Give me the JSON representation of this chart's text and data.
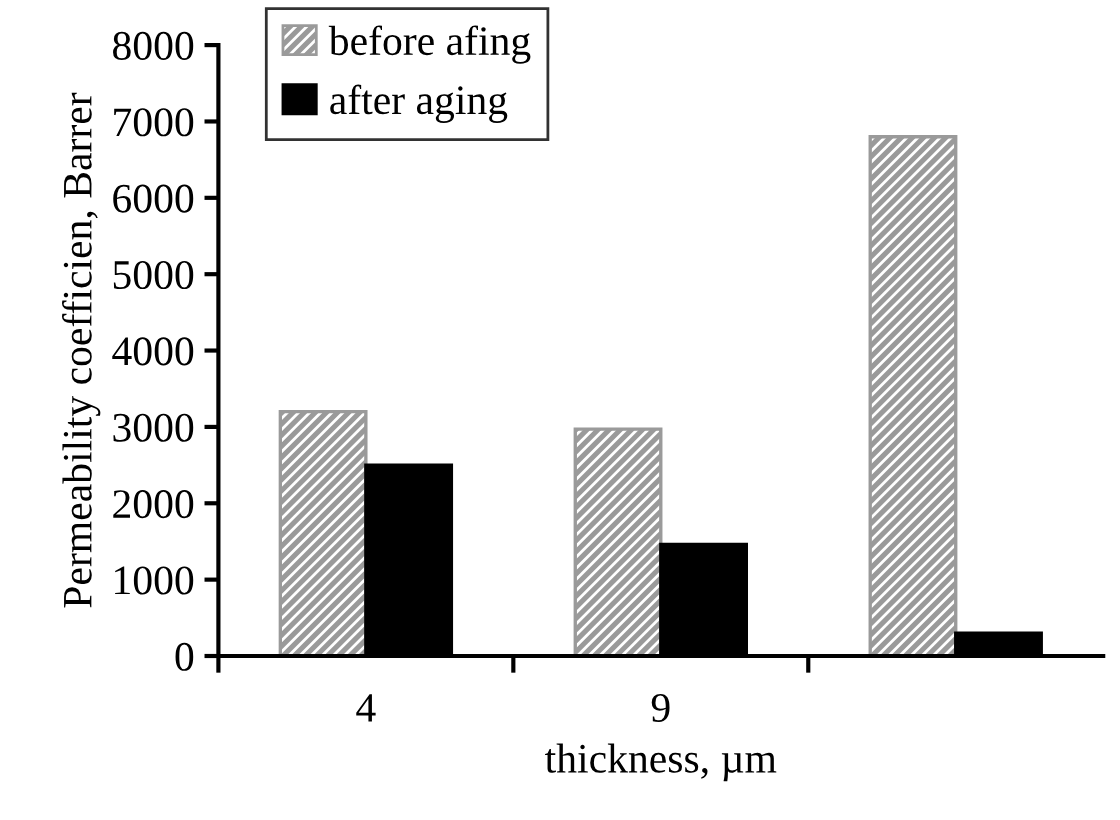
{
  "chart_data": {
    "type": "bar",
    "xlabel": "thickness, µm",
    "ylabel": "Permeability coefficien, Barrer",
    "categories": [
      "4",
      "9",
      null
    ],
    "series": [
      {
        "name": "before afing",
        "color": "#9a9a9a",
        "values": [
          3200,
          2970,
          6800
        ]
      },
      {
        "name": "after aging",
        "color": "#000000",
        "values": [
          2500,
          1460,
          300
        ]
      }
    ],
    "ylim": [
      0,
      8000
    ],
    "yticks": [
      0,
      1000,
      2000,
      3000,
      4000,
      5000,
      6000,
      7000,
      8000
    ],
    "grid": false,
    "legend": "top left"
  }
}
